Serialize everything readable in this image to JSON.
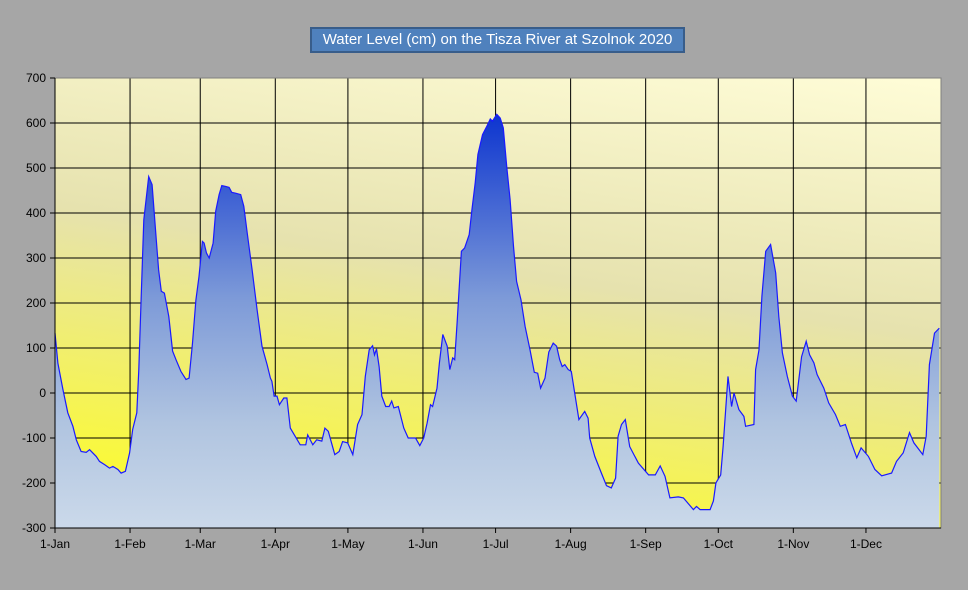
{
  "chart_data": {
    "type": "area",
    "title": "Water Level (cm) on the Tisza River at Szolnok 2020",
    "xlabel": "",
    "ylabel": "",
    "ylim": [
      -300,
      700
    ],
    "xlim_days": [
      0,
      366
    ],
    "grid": true,
    "legend": "none",
    "y_ticks": [
      "700",
      "600",
      "500",
      "400",
      "300",
      "200",
      "100",
      "0",
      "-100",
      "-200",
      "-300"
    ],
    "x_ticks": [
      {
        "label": "1-Jan",
        "day": 0
      },
      {
        "label": "1-Feb",
        "day": 31
      },
      {
        "label": "1-Mar",
        "day": 60
      },
      {
        "label": "1-Apr",
        "day": 91
      },
      {
        "label": "1-May",
        "day": 121
      },
      {
        "label": "1-Jun",
        "day": 152
      },
      {
        "label": "1-Jul",
        "day": 182
      },
      {
        "label": "1-Aug",
        "day": 213
      },
      {
        "label": "1-Sep",
        "day": 244
      },
      {
        "label": "1-Oct",
        "day": 274
      },
      {
        "label": "1-Nov",
        "day": 305
      },
      {
        "label": "1-Dec",
        "day": 335
      }
    ],
    "series": [
      {
        "name": "Water Level (cm)",
        "color": "#1a1aff",
        "points": [
          [
            0,
            133
          ],
          [
            1.2,
            66
          ],
          [
            3.3,
            7
          ],
          [
            5.3,
            -44
          ],
          [
            7.4,
            -74
          ],
          [
            8.8,
            -104
          ],
          [
            10.8,
            -130
          ],
          [
            12.9,
            -132
          ],
          [
            14.3,
            -126
          ],
          [
            17,
            -141
          ],
          [
            18.4,
            -152
          ],
          [
            20.5,
            -159
          ],
          [
            22.5,
            -167
          ],
          [
            23.9,
            -163
          ],
          [
            26,
            -170
          ],
          [
            27.3,
            -178
          ],
          [
            29.1,
            -174
          ],
          [
            30.8,
            -133
          ],
          [
            32.1,
            -81
          ],
          [
            33.8,
            -44
          ],
          [
            34.6,
            52
          ],
          [
            35.6,
            215
          ],
          [
            36.7,
            385
          ],
          [
            38.7,
            481
          ],
          [
            40.1,
            463
          ],
          [
            41.5,
            363
          ],
          [
            42.8,
            274
          ],
          [
            43.9,
            226
          ],
          [
            45.2,
            222
          ],
          [
            47,
            170
          ],
          [
            48.6,
            93
          ],
          [
            50,
            74
          ],
          [
            52,
            48
          ],
          [
            54.1,
            30
          ],
          [
            55.4,
            33
          ],
          [
            56.8,
            111
          ],
          [
            58.2,
            207
          ],
          [
            59.5,
            259
          ],
          [
            60.9,
            337
          ],
          [
            61.6,
            333
          ],
          [
            62.6,
            311
          ],
          [
            63.7,
            300
          ],
          [
            65.3,
            333
          ],
          [
            66.4,
            404
          ],
          [
            67.8,
            441
          ],
          [
            68.9,
            461
          ],
          [
            70.5,
            459
          ],
          [
            71.9,
            457
          ],
          [
            73,
            446
          ],
          [
            74.6,
            444
          ],
          [
            76.7,
            441
          ],
          [
            78,
            415
          ],
          [
            79.4,
            356
          ],
          [
            81.4,
            274
          ],
          [
            83.5,
            185
          ],
          [
            85.5,
            104
          ],
          [
            87.6,
            63
          ],
          [
            89,
            33
          ],
          [
            89.6,
            26
          ],
          [
            90.5,
            -7
          ],
          [
            91.7,
            -7
          ],
          [
            92.7,
            -26
          ],
          [
            94.5,
            -11
          ],
          [
            95.8,
            -11
          ],
          [
            97.2,
            -78
          ],
          [
            99.2,
            -96
          ],
          [
            101.3,
            -115
          ],
          [
            103.6,
            -115
          ],
          [
            104.4,
            -93
          ],
          [
            106.5,
            -115
          ],
          [
            108.1,
            -104
          ],
          [
            110.2,
            -107
          ],
          [
            111.5,
            -78
          ],
          [
            112.9,
            -85
          ],
          [
            115.6,
            -137
          ],
          [
            117.4,
            -130
          ],
          [
            118.8,
            -108
          ],
          [
            120.9,
            -111
          ],
          [
            123,
            -137
          ],
          [
            125,
            -70
          ],
          [
            126.8,
            -48
          ],
          [
            128.2,
            37
          ],
          [
            129.8,
            96
          ],
          [
            131.2,
            105
          ],
          [
            132,
            85
          ],
          [
            132.8,
            98
          ],
          [
            133.9,
            59
          ],
          [
            135,
            -7
          ],
          [
            136.6,
            -30
          ],
          [
            138,
            -30
          ],
          [
            139.1,
            -18
          ],
          [
            140,
            -33
          ],
          [
            141.8,
            -30
          ],
          [
            144.1,
            -78
          ],
          [
            145.9,
            -100
          ],
          [
            148.9,
            -100
          ],
          [
            150.7,
            -117
          ],
          [
            152.3,
            -100
          ],
          [
            153.7,
            -67
          ],
          [
            155.1,
            -26
          ],
          [
            156,
            -30
          ],
          [
            157.8,
            11
          ],
          [
            158.8,
            67
          ],
          [
            160.2,
            130
          ],
          [
            162,
            104
          ],
          [
            163.1,
            52
          ],
          [
            164.3,
            78
          ],
          [
            165.1,
            74
          ],
          [
            166.1,
            156
          ],
          [
            167.9,
            315
          ],
          [
            169.2,
            322
          ],
          [
            171.1,
            352
          ],
          [
            172.2,
            407
          ],
          [
            173.6,
            467
          ],
          [
            174.7,
            530
          ],
          [
            176.6,
            574
          ],
          [
            178.4,
            593
          ],
          [
            179.8,
            609
          ],
          [
            180.7,
            604
          ],
          [
            182.5,
            619
          ],
          [
            183.9,
            611
          ],
          [
            185.2,
            589
          ],
          [
            186.6,
            504
          ],
          [
            188,
            430
          ],
          [
            189.4,
            326
          ],
          [
            190.7,
            248
          ],
          [
            192.5,
            207
          ],
          [
            194.2,
            148
          ],
          [
            196.2,
            96
          ],
          [
            198,
            46
          ],
          [
            199.4,
            44
          ],
          [
            200.6,
            11
          ],
          [
            202.4,
            33
          ],
          [
            204,
            91
          ],
          [
            205.8,
            111
          ],
          [
            207.2,
            104
          ],
          [
            208.5,
            74
          ],
          [
            209.5,
            59
          ],
          [
            210.6,
            63
          ],
          [
            212,
            52
          ],
          [
            213.3,
            48
          ],
          [
            214.7,
            0
          ],
          [
            216.4,
            -59
          ],
          [
            218.8,
            -41
          ],
          [
            220.2,
            -56
          ],
          [
            220.9,
            -100
          ],
          [
            223,
            -141
          ],
          [
            225.7,
            -178
          ],
          [
            227.8,
            -206
          ],
          [
            229.8,
            -211
          ],
          [
            231.6,
            -189
          ],
          [
            232.6,
            -96
          ],
          [
            234,
            -70
          ],
          [
            235.6,
            -59
          ],
          [
            237.4,
            -119
          ],
          [
            241,
            -156
          ],
          [
            245.2,
            -182
          ],
          [
            248,
            -182
          ],
          [
            250,
            -162
          ],
          [
            252,
            -185
          ],
          [
            254,
            -233
          ],
          [
            257.5,
            -231
          ],
          [
            259.6,
            -233
          ],
          [
            263.7,
            -259
          ],
          [
            265,
            -252
          ],
          [
            266.5,
            -259
          ],
          [
            270.6,
            -259
          ],
          [
            272,
            -240
          ],
          [
            273,
            -200
          ],
          [
            275,
            -182
          ],
          [
            276,
            -119
          ],
          [
            278,
            37
          ],
          [
            279.5,
            -30
          ],
          [
            280.5,
            0
          ],
          [
            282.5,
            -37
          ],
          [
            284.6,
            -52
          ],
          [
            285.3,
            -74
          ],
          [
            288.7,
            -70
          ],
          [
            289.4,
            52
          ],
          [
            290.8,
            96
          ],
          [
            292,
            215
          ],
          [
            293.6,
            315
          ],
          [
            295.6,
            330
          ],
          [
            297.7,
            267
          ],
          [
            299,
            170
          ],
          [
            300.5,
            89
          ],
          [
            302.5,
            37
          ],
          [
            304.6,
            -7
          ],
          [
            306.2,
            -18
          ],
          [
            308.4,
            81
          ],
          [
            310.3,
            115
          ],
          [
            311.7,
            85
          ],
          [
            313.5,
            67
          ],
          [
            314.8,
            41
          ],
          [
            317.6,
            11
          ],
          [
            319.6,
            -22
          ],
          [
            322.4,
            -48
          ],
          [
            324.4,
            -74
          ],
          [
            326.5,
            -70
          ],
          [
            329,
            -111
          ],
          [
            331.2,
            -144
          ],
          [
            333,
            -122
          ],
          [
            336,
            -141
          ],
          [
            338.7,
            -170
          ],
          [
            341.5,
            -184
          ],
          [
            345.6,
            -178
          ],
          [
            347.6,
            -152
          ],
          [
            350.4,
            -133
          ],
          [
            353,
            -88
          ],
          [
            354.8,
            -111
          ],
          [
            358.5,
            -137
          ],
          [
            359.9,
            -96
          ],
          [
            361.2,
            63
          ],
          [
            363.3,
            133
          ],
          [
            365.3,
            144
          ]
        ]
      }
    ]
  }
}
